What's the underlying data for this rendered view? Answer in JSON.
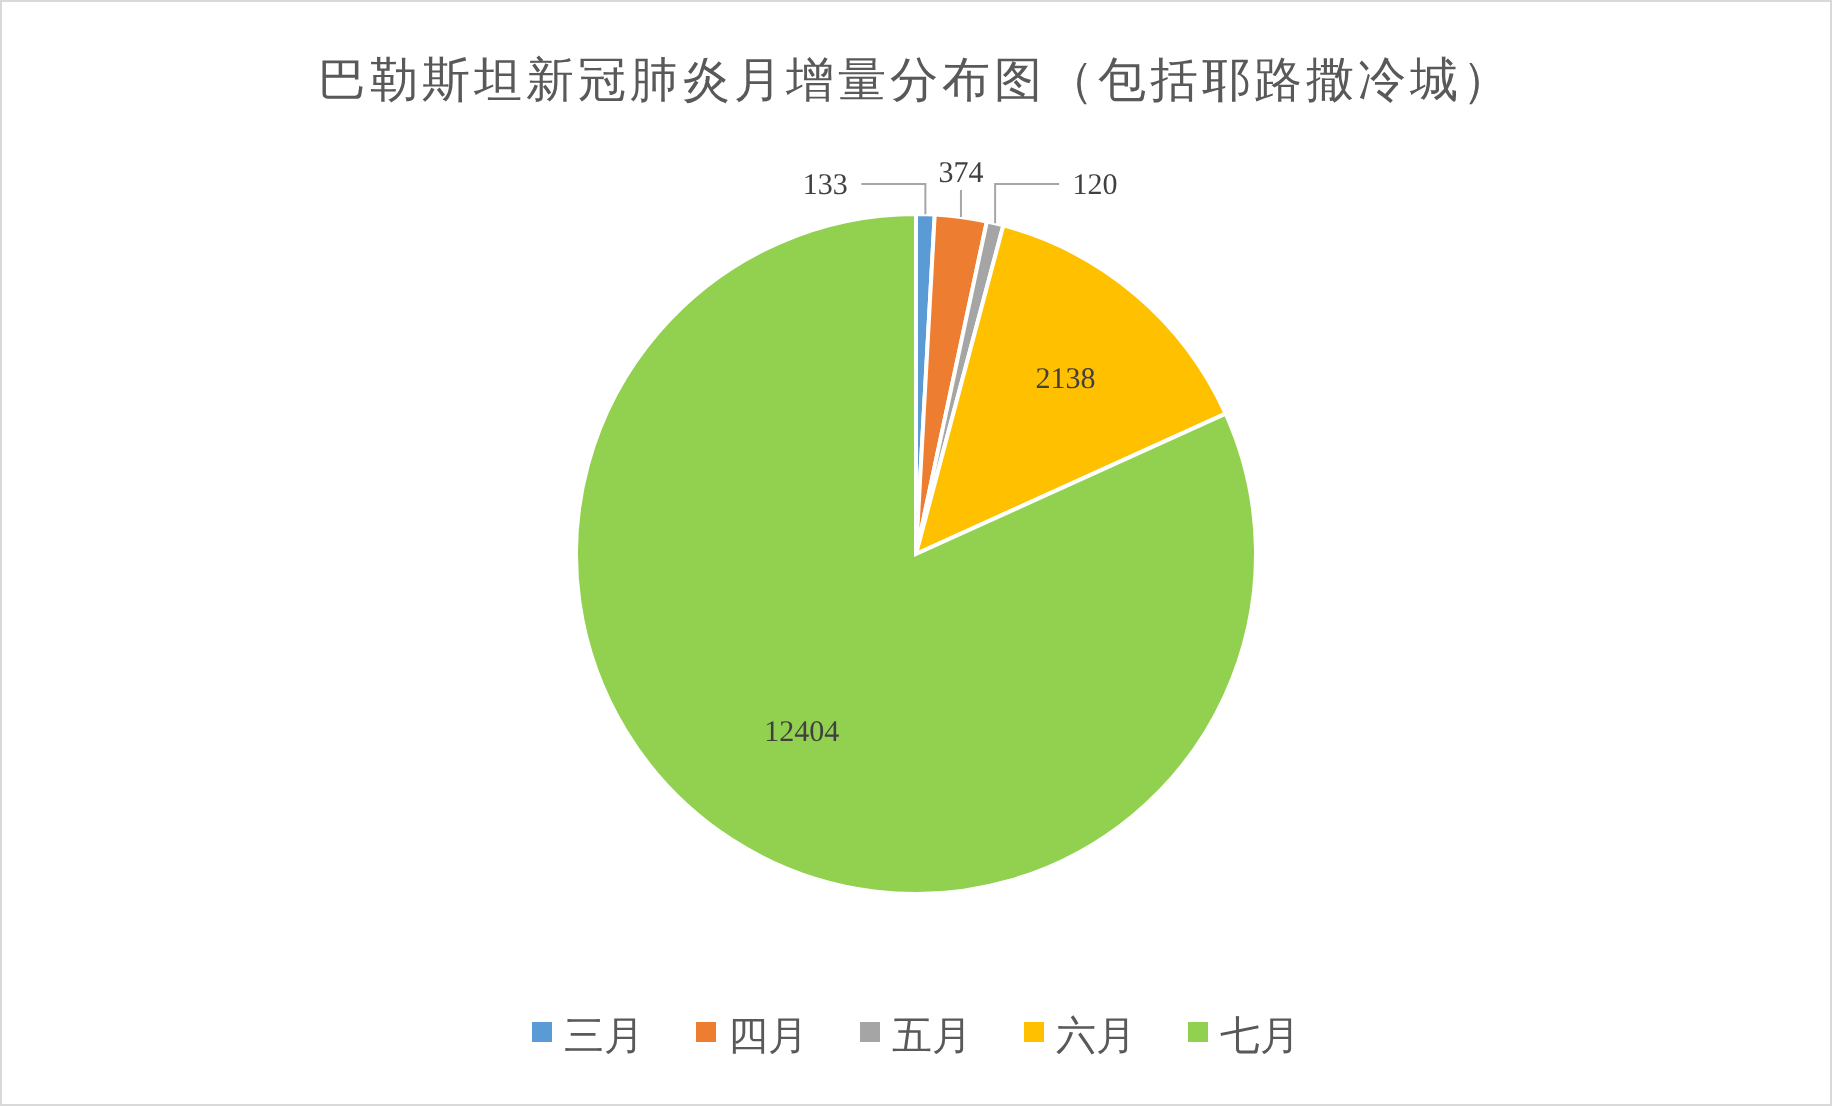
{
  "chart_data": {
    "type": "pie",
    "title": "巴勒斯坦新冠肺炎月增量分布图（包括耶路撒冷城）",
    "categories": [
      "三月",
      "四月",
      "五月",
      "六月",
      "七月"
    ],
    "values": [
      133,
      374,
      120,
      2138,
      12404
    ],
    "colors": [
      "#5b9bd5",
      "#ed7d31",
      "#a5a5a5",
      "#ffc000",
      "#92d050"
    ],
    "data_labels": true,
    "legend": "bottom"
  }
}
